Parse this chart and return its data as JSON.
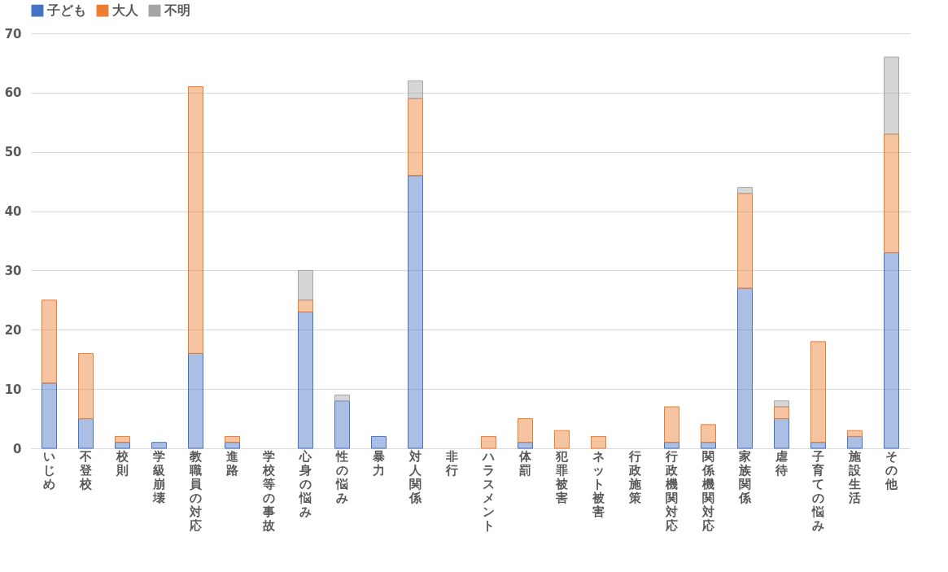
{
  "chart_data": {
    "type": "bar",
    "stacked": true,
    "legend": "top",
    "grid": "y",
    "categories": [
      "いじめ",
      "不登校",
      "校則",
      "学級崩壊",
      "教職員の対応",
      "進路",
      "学校等の事故",
      "心身の悩み",
      "性の悩み",
      "暴力",
      "対人関係",
      "非行",
      "ハラスメント",
      "体罰",
      "犯罪被害",
      "ネット被害",
      "行政施策",
      "行政機関対応",
      "関係機関対応",
      "家族関係",
      "虐待",
      "子育ての悩み",
      "施設生活",
      "その他"
    ],
    "series": [
      {
        "name": "子ども",
        "color": "#4472c4",
        "values": [
          11,
          5,
          1,
          1,
          16,
          1,
          0,
          23,
          8,
          2,
          46,
          0,
          0,
          1,
          0,
          0,
          0,
          1,
          1,
          27,
          5,
          1,
          2,
          33
        ]
      },
      {
        "name": "大人",
        "color": "#ed7d31",
        "values": [
          14,
          11,
          1,
          0,
          45,
          1,
          0,
          2,
          0,
          0,
          13,
          0,
          2,
          4,
          3,
          2,
          0,
          6,
          3,
          16,
          2,
          17,
          1,
          20
        ]
      },
      {
        "name": "不明",
        "color": "#a5a5a5",
        "values": [
          0,
          0,
          0,
          0,
          0,
          0,
          0,
          5,
          1,
          0,
          3,
          0,
          0,
          0,
          0,
          0,
          0,
          0,
          0,
          1,
          1,
          0,
          0,
          13
        ]
      }
    ],
    "ylim": [
      0,
      70
    ],
    "yticks": [
      0,
      10,
      20,
      30,
      40,
      50,
      60,
      70
    ]
  }
}
